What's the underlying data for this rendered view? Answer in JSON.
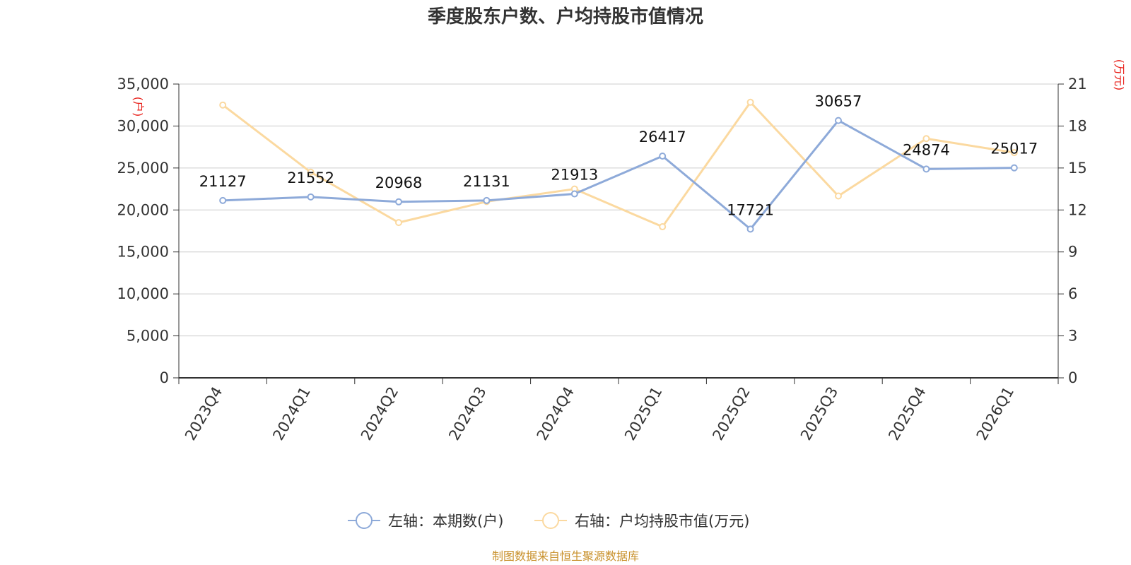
{
  "title": "季度股东户数、户均持股市值情况",
  "source_text": "制图数据来自恒生聚源数据库",
  "colors": {
    "series_left": "#8eaad9",
    "series_right": "#fbd9a0",
    "unit_label": "#e8221c",
    "source_text": "#c8902a",
    "grid": "#cccccc",
    "axis": "#333333"
  },
  "chart_data": {
    "type": "line",
    "title": "季度股东户数、户均持股市值情况",
    "categories": [
      "2023Q4",
      "2024Q1",
      "2024Q2",
      "2024Q3",
      "2024Q4",
      "2025Q1",
      "2025Q2",
      "2025Q3",
      "2025Q4",
      "2026Q1"
    ],
    "y_left": {
      "unit": "(户)",
      "range": [
        0,
        35000
      ],
      "ticks": [
        0,
        5000,
        10000,
        15000,
        20000,
        25000,
        30000,
        35000
      ],
      "tick_labels": [
        "0",
        "5,000",
        "10,000",
        "15,000",
        "20,000",
        "25,000",
        "30,000",
        "35,000"
      ]
    },
    "y_right": {
      "unit": "(万元)",
      "range": [
        0,
        21
      ],
      "ticks": [
        0,
        3,
        6,
        9,
        12,
        15,
        18,
        21
      ],
      "tick_labels": [
        "0",
        "3",
        "6",
        "9",
        "12",
        "15",
        "18",
        "21"
      ]
    },
    "grid": true,
    "legend_position": "bottom",
    "series": [
      {
        "name": "左轴：本期数(户)",
        "axis": "left",
        "values": [
          21127,
          21552,
          20968,
          21131,
          21913,
          26417,
          17721,
          30657,
          24874,
          25017
        ],
        "data_labels": [
          "21127",
          "21552",
          "20968",
          "21131",
          "21913",
          "26417",
          "17721",
          "30657",
          "24874",
          "25017"
        ]
      },
      {
        "name": "右轴：户均持股市值(万元)",
        "axis": "right",
        "values": [
          19.5,
          14.7,
          11.1,
          12.6,
          13.5,
          10.8,
          19.7,
          13.0,
          17.1,
          16.1
        ]
      }
    ]
  }
}
